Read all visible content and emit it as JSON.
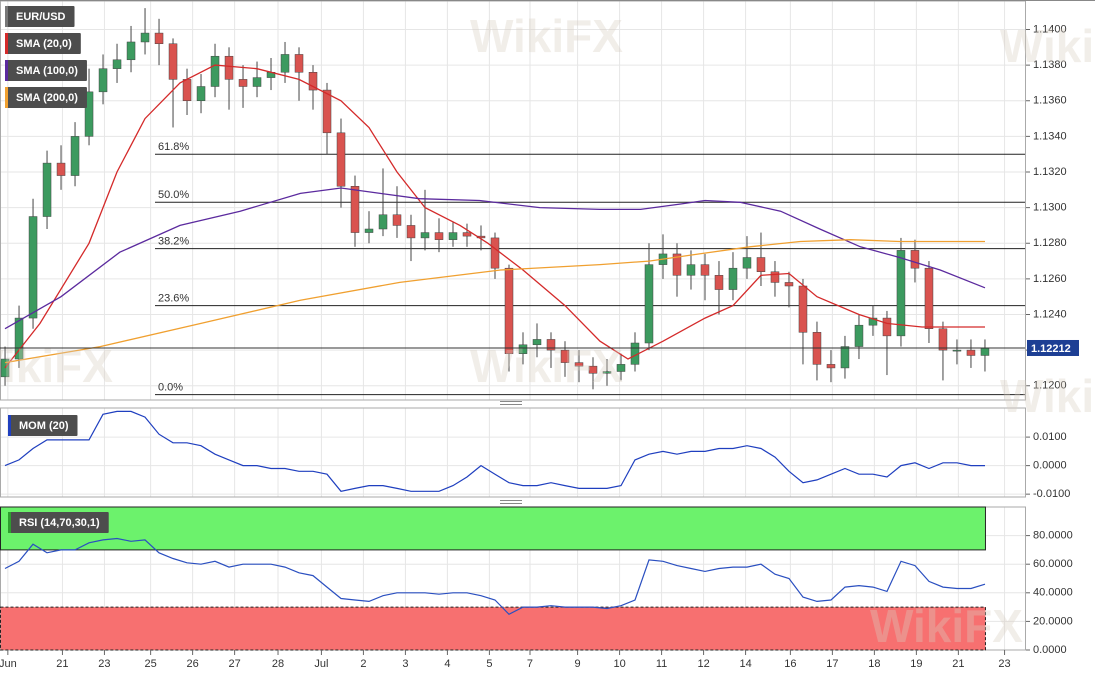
{
  "chart_data": [
    {
      "type": "candlestick",
      "name": "EUR/USD",
      "open": [
        1.1205,
        1.1215,
        1.1238,
        1.1295,
        1.1325,
        1.1318,
        1.134,
        1.1365,
        1.1378,
        1.1383,
        1.1393,
        1.1398,
        1.1392,
        1.1372,
        1.136,
        1.1368,
        1.1385,
        1.1372,
        1.1368,
        1.1373,
        1.1376,
        1.1386,
        1.1376,
        1.1366,
        1.1342,
        1.1312,
        1.1286,
        1.1288,
        1.1296,
        1.129,
        1.1283,
        1.1286,
        1.1282,
        1.1286,
        1.1284,
        1.1283,
        1.1266,
        1.1218,
        1.1223,
        1.1226,
        1.122,
        1.1213,
        1.1211,
        1.1207,
        1.1208,
        1.1212,
        1.1224,
        1.1268,
        1.1274,
        1.1262,
        1.1268,
        1.1262,
        1.1254,
        1.1266,
        1.1272,
        1.1264,
        1.1258,
        1.1256,
        1.123,
        1.1212,
        1.121,
        1.1222,
        1.1234,
        1.1238,
        1.1228,
        1.1276,
        1.1266,
        1.1232,
        1.122,
        1.122,
        1.1217
      ],
      "high": [
        1.1222,
        1.1245,
        1.1305,
        1.1332,
        1.1335,
        1.1348,
        1.1378,
        1.1386,
        1.1392,
        1.1402,
        1.1412,
        1.1406,
        1.1395,
        1.1378,
        1.1375,
        1.1392,
        1.139,
        1.138,
        1.1382,
        1.1384,
        1.1393,
        1.139,
        1.138,
        1.137,
        1.135,
        1.1318,
        1.1298,
        1.1322,
        1.1312,
        1.1296,
        1.131,
        1.1294,
        1.1292,
        1.1291,
        1.129,
        1.1286,
        1.1268,
        1.123,
        1.1235,
        1.123,
        1.1225,
        1.122,
        1.1216,
        1.1215,
        1.1218,
        1.123,
        1.128,
        1.1285,
        1.128,
        1.1276,
        1.1274,
        1.127,
        1.1275,
        1.1284,
        1.1286,
        1.127,
        1.1264,
        1.126,
        1.1236,
        1.122,
        1.1228,
        1.124,
        1.1245,
        1.1242,
        1.1283,
        1.1282,
        1.127,
        1.1236,
        1.1226,
        1.1226,
        1.1226
      ],
      "low": [
        1.12,
        1.121,
        1.1232,
        1.1288,
        1.131,
        1.1312,
        1.1335,
        1.1358,
        1.137,
        1.1376,
        1.1386,
        1.138,
        1.1345,
        1.1352,
        1.1353,
        1.1362,
        1.1355,
        1.1356,
        1.1362,
        1.1366,
        1.137,
        1.136,
        1.1355,
        1.133,
        1.13,
        1.1278,
        1.128,
        1.1284,
        1.1283,
        1.127,
        1.1276,
        1.1275,
        1.1278,
        1.1278,
        1.1276,
        1.126,
        1.1208,
        1.1212,
        1.1216,
        1.121,
        1.1205,
        1.1202,
        1.1198,
        1.12,
        1.1203,
        1.1208,
        1.122,
        1.126,
        1.125,
        1.1254,
        1.1248,
        1.124,
        1.1248,
        1.126,
        1.1256,
        1.125,
        1.1244,
        1.1212,
        1.1203,
        1.1202,
        1.1204,
        1.1215,
        1.1228,
        1.1206,
        1.1222,
        1.1258,
        1.1224,
        1.1203,
        1.1212,
        1.121,
        1.1208
      ],
      "close": [
        1.1215,
        1.1238,
        1.1295,
        1.1325,
        1.1318,
        1.134,
        1.1365,
        1.1378,
        1.1383,
        1.1393,
        1.1398,
        1.1392,
        1.1372,
        1.136,
        1.1368,
        1.1385,
        1.1372,
        1.1368,
        1.1373,
        1.1376,
        1.1386,
        1.1376,
        1.1366,
        1.1342,
        1.1312,
        1.1286,
        1.1288,
        1.1296,
        1.129,
        1.1283,
        1.1286,
        1.1282,
        1.1286,
        1.1284,
        1.1283,
        1.1266,
        1.1218,
        1.1223,
        1.1226,
        1.122,
        1.1213,
        1.1211,
        1.1207,
        1.1208,
        1.1212,
        1.1224,
        1.1268,
        1.1274,
        1.1262,
        1.1268,
        1.1262,
        1.1254,
        1.1266,
        1.1272,
        1.1264,
        1.1258,
        1.1256,
        1.123,
        1.1212,
        1.121,
        1.1222,
        1.1234,
        1.1238,
        1.1228,
        1.1276,
        1.1266,
        1.1232,
        1.122,
        1.122,
        1.1217,
        1.1221
      ],
      "up_color": "#3c9a5f",
      "down_color": "#d9534f",
      "legend_color": "#777777",
      "overlays": [
        {
          "name": "SMA (20,0)",
          "color": "#d42a2a",
          "x": [
            0,
            2.5,
            6,
            8,
            10,
            12.5,
            15,
            18,
            21,
            24,
            26,
            28,
            30,
            32.5,
            34.5,
            37,
            40,
            42.5,
            44.5,
            47,
            50,
            52,
            54,
            56,
            58,
            61,
            63,
            65.5,
            70
          ],
          "values": [
            1.121,
            1.1235,
            1.128,
            1.132,
            1.135,
            1.137,
            1.138,
            1.1378,
            1.1372,
            1.136,
            1.1345,
            1.132,
            1.13,
            1.129,
            1.128,
            1.1265,
            1.1245,
            1.1225,
            1.1215,
            1.1225,
            1.1238,
            1.1245,
            1.1262,
            1.1263,
            1.125,
            1.124,
            1.1235,
            1.1233,
            1.1233
          ]
        },
        {
          "name": "SMA (100,0)",
          "color": "#5b2a9e",
          "x": [
            0,
            4,
            8.2,
            12.5,
            16.8,
            21.1,
            24,
            26.8,
            29.6,
            33.9,
            38.2,
            42.5,
            45.4,
            48.2,
            50,
            52.5,
            55.4,
            58.2,
            61.1,
            63.9,
            66.8,
            70
          ],
          "values": [
            1.1232,
            1.125,
            1.1275,
            1.129,
            1.1298,
            1.1308,
            1.1311,
            1.1308,
            1.1305,
            1.1304,
            1.13,
            1.1299,
            1.1299,
            1.1302,
            1.1304,
            1.1303,
            1.1298,
            1.1288,
            1.1278,
            1.1272,
            1.1265,
            1.1255
          ]
        },
        {
          "name": "SMA (200,0)",
          "color": "#f0a030",
          "x": [
            0,
            6.8,
            14,
            21.1,
            28.2,
            35.4,
            42.5,
            46,
            49.6,
            53.2,
            56.8,
            60.4,
            63.9,
            70
          ],
          "values": [
            1.1213,
            1.1222,
            1.1235,
            1.1248,
            1.1258,
            1.1265,
            1.1268,
            1.127,
            1.1274,
            1.1278,
            1.1281,
            1.1282,
            1.1281,
            1.1281
          ]
        }
      ],
      "fib_levels": [
        {
          "label": "61.8%",
          "value": 1.133
        },
        {
          "label": "50.0%",
          "value": 1.1303
        },
        {
          "label": "38.2%",
          "value": 1.1277
        },
        {
          "label": "23.6%",
          "value": 1.1245
        },
        {
          "label": "0.0%",
          "value": 1.1195
        }
      ],
      "last_price": 1.12212,
      "last_price_color": "#1d3f94",
      "xlim": [
        -0.36,
        72.86
      ],
      "xticks": [
        {
          "value": 0.2,
          "label": "Jun"
        },
        {
          "value": 4.1,
          "label": "21"
        },
        {
          "value": 7.1,
          "label": "23"
        },
        {
          "value": 10.4,
          "label": "25"
        },
        {
          "value": 13.4,
          "label": "26"
        },
        {
          "value": 16.4,
          "label": "27"
        },
        {
          "value": 19.5,
          "label": "28"
        },
        {
          "value": 22.6,
          "label": "Jul"
        },
        {
          "value": 25.6,
          "label": "2"
        },
        {
          "value": 28.6,
          "label": "3"
        },
        {
          "value": 31.6,
          "label": "4"
        },
        {
          "value": 34.6,
          "label": "5"
        },
        {
          "value": 37.5,
          "label": "7"
        },
        {
          "value": 40.9,
          "label": "9"
        },
        {
          "value": 43.9,
          "label": "10"
        },
        {
          "value": 46.9,
          "label": "11"
        },
        {
          "value": 49.9,
          "label": "12"
        },
        {
          "value": 52.9,
          "label": "14"
        },
        {
          "value": 56.1,
          "label": "16"
        },
        {
          "value": 59.1,
          "label": "17"
        },
        {
          "value": 62.1,
          "label": "18"
        },
        {
          "value": 65.1,
          "label": "19"
        },
        {
          "value": 68.1,
          "label": "21"
        },
        {
          "value": 71.4,
          "label": "23"
        }
      ],
      "ylim": [
        1.1192,
        1.1416
      ],
      "yticks": [
        {
          "value": 1.12,
          "label": "1.1200"
        },
        {
          "value": 1.122,
          "label": "1.1220"
        },
        {
          "value": 1.124,
          "label": "1.1240"
        },
        {
          "value": 1.126,
          "label": "1.1260"
        },
        {
          "value": 1.128,
          "label": "1.1280"
        },
        {
          "value": 1.13,
          "label": "1.1300"
        },
        {
          "value": 1.132,
          "label": "1.1320"
        },
        {
          "value": 1.134,
          "label": "1.1340"
        },
        {
          "value": 1.136,
          "label": "1.1360"
        },
        {
          "value": 1.138,
          "label": "1.1380"
        },
        {
          "value": 1.14,
          "label": "1.1400"
        }
      ],
      "grid": true
    },
    {
      "type": "line",
      "name": "MOM (20)",
      "color": "#1f3fbf",
      "values": [
        0.0,
        0.002,
        0.006,
        0.009,
        0.009,
        0.009,
        0.009,
        0.018,
        0.019,
        0.019,
        0.017,
        0.011,
        0.008,
        0.008,
        0.007,
        0.004,
        0.002,
        0.0,
        0.0,
        -0.001,
        -0.001,
        -0.002,
        -0.002,
        -0.003,
        -0.009,
        -0.008,
        -0.007,
        -0.007,
        -0.008,
        -0.009,
        -0.009,
        -0.009,
        -0.007,
        -0.004,
        0.0,
        -0.003,
        -0.006,
        -0.007,
        -0.007,
        -0.006,
        -0.007,
        -0.008,
        -0.008,
        -0.008,
        -0.007,
        0.002,
        0.004,
        0.005,
        0.004,
        0.005,
        0.005,
        0.006,
        0.006,
        0.007,
        0.006,
        0.003,
        -0.002,
        -0.006,
        -0.005,
        -0.003,
        -0.001,
        -0.003,
        -0.003,
        -0.004,
        0.0,
        0.001,
        -0.001,
        0.001,
        0.001,
        0.0,
        0.0
      ],
      "ylim": [
        -0.011,
        0.0202
      ],
      "yticks": [
        {
          "value": -0.01,
          "label": "-0.0100"
        },
        {
          "value": 0,
          "label": "0.0000"
        },
        {
          "value": 0.01,
          "label": "0.0100"
        }
      ],
      "grid": true
    },
    {
      "type": "rsi",
      "name": "RSI (14,70,30,1)",
      "color": "#2a4fc0",
      "values": [
        57,
        62,
        74,
        68,
        70,
        70,
        75,
        77,
        78,
        76,
        77,
        68,
        64,
        61,
        60,
        62,
        58,
        60,
        60,
        60,
        58,
        54,
        52,
        44,
        36,
        35,
        34,
        38,
        40,
        40,
        40,
        39,
        40,
        40,
        38,
        35,
        25,
        30,
        30,
        31,
        30,
        30,
        30,
        29,
        31,
        35,
        63,
        62,
        59,
        57,
        55,
        57,
        58,
        58,
        60,
        53,
        50,
        37,
        34,
        35,
        44,
        45,
        44,
        41,
        62,
        59,
        48,
        44,
        43,
        43,
        46
      ],
      "overbought": 70,
      "oversold": 30,
      "overbought_color": "#6cf26c",
      "oversold_color": "#f77070",
      "ylim": [
        0,
        100
      ],
      "yticks": [
        {
          "value": 0,
          "label": "0.0000"
        },
        {
          "value": 20,
          "label": "20.0000"
        },
        {
          "value": 40,
          "label": "40.0000"
        },
        {
          "value": 60,
          "label": "60.0000"
        },
        {
          "value": 80,
          "label": "80.0000"
        }
      ],
      "grid": true
    }
  ],
  "watermark": "WikiFX"
}
